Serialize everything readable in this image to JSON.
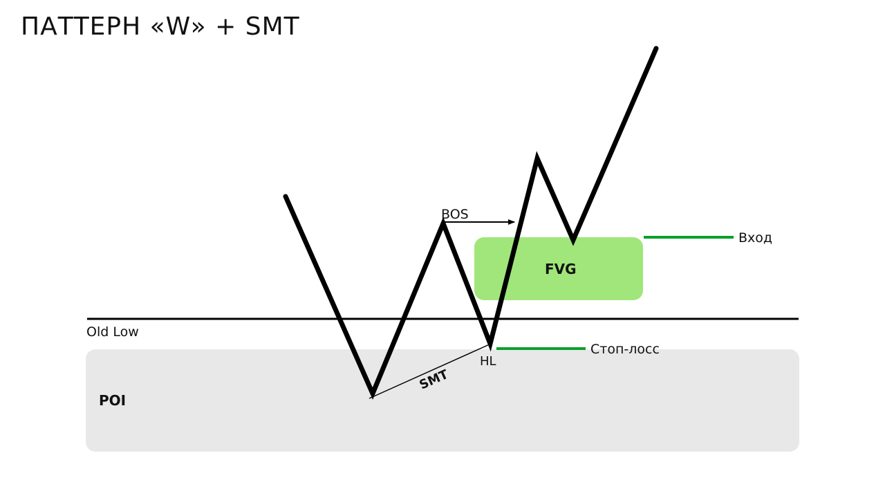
{
  "title": "ПАТТЕРН «W» + SMT",
  "labels": {
    "poi": "POI",
    "old_low": "Old Low",
    "fvg": "FVG",
    "bos": "BOS",
    "smt": "SMT",
    "hl": "HL",
    "entry": "Вход",
    "stop_loss": "Стоп-лосс"
  },
  "colors": {
    "poi_zone": "#e8e8e8",
    "fvg_zone": "#a0e67a",
    "level_lines": "#0aa02a",
    "price_path": "#000000"
  }
}
